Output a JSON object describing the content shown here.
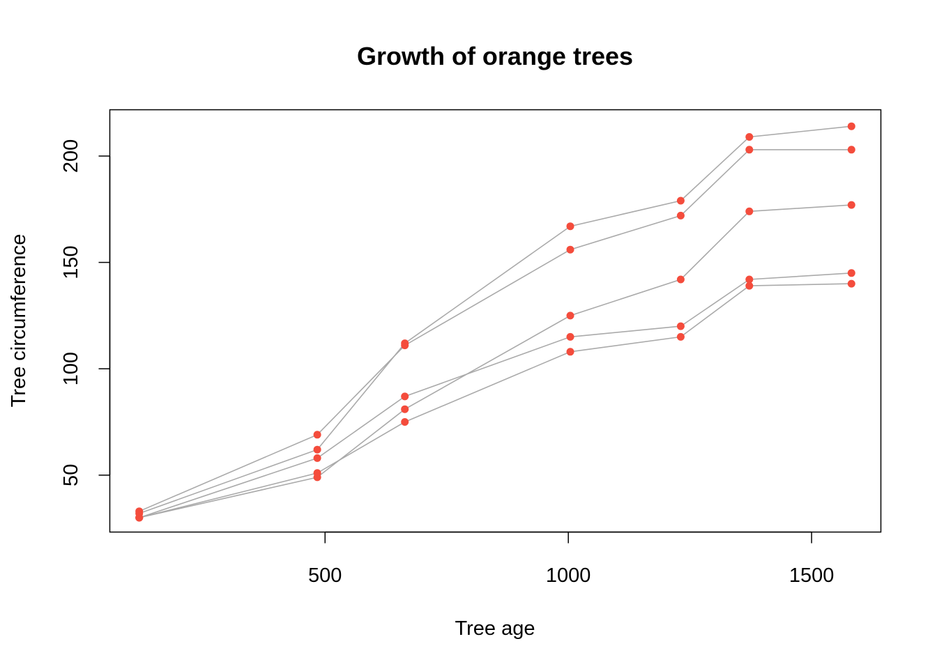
{
  "chart_data": {
    "type": "line",
    "title": "Growth of orange trees",
    "xlabel": "Tree age",
    "ylabel": "Tree circumference",
    "x": [
      118,
      484,
      664,
      1004,
      1231,
      1372,
      1582
    ],
    "series": [
      {
        "values": [
          30,
          58,
          87,
          115,
          120,
          142,
          145
        ]
      },
      {
        "values": [
          33,
          69,
          111,
          156,
          172,
          203,
          203
        ]
      },
      {
        "values": [
          30,
          51,
          75,
          108,
          115,
          139,
          140
        ]
      },
      {
        "values": [
          32,
          62,
          112,
          167,
          179,
          209,
          214
        ]
      },
      {
        "values": [
          30,
          49,
          81,
          125,
          142,
          174,
          177
        ]
      }
    ],
    "xticks": [
      500,
      1000,
      1500
    ],
    "yticks": [
      50,
      100,
      150,
      200
    ],
    "xlim": [
      57.6,
      1642.4
    ],
    "ylim": [
      23.24,
      221.76
    ],
    "grid": false,
    "line_color": "#AAAAAA",
    "point_color": "#F44C3C"
  }
}
